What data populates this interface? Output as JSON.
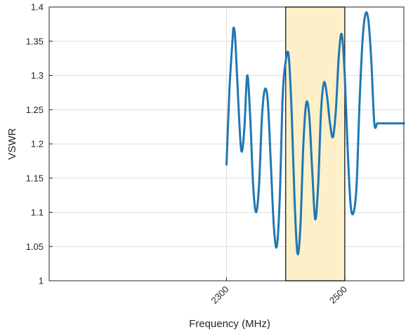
{
  "chart_data": {
    "type": "line",
    "title": "",
    "xlabel": "Frequency (MHz)",
    "ylabel": "VSWR",
    "xlim": [
      2000,
      2600
    ],
    "ylim": [
      1,
      1.4
    ],
    "xticks": [
      2300,
      2500
    ],
    "xtick_labels": [
      "2300",
      "2500"
    ],
    "yticks": [
      1,
      1.05,
      1.1,
      1.15,
      1.2,
      1.25,
      1.3,
      1.35,
      1.4
    ],
    "ytick_labels": [
      "1",
      "1.05",
      "1.1",
      "1.15",
      "1.2",
      "1.25",
      "1.3",
      "1.35",
      "1.4"
    ],
    "grid": true,
    "line_color": "#1f77b4",
    "highlight": {
      "x_range": [
        2400,
        2500
      ],
      "fill_color": "#fdf0c8",
      "edge_color": "#333333"
    },
    "series": [
      {
        "x": [
          2300,
          2305,
          2310,
          2312,
          2315,
          2320,
          2325,
          2330,
          2335,
          2340,
          2345,
          2350,
          2355,
          2360,
          2365,
          2370,
          2375,
          2380,
          2385,
          2390,
          2395,
          2400,
          2405,
          2410,
          2415,
          2420,
          2425,
          2430,
          2435,
          2440,
          2445,
          2450,
          2455,
          2460,
          2465,
          2470,
          2475,
          2480,
          2485,
          2490,
          2495,
          2500,
          2505,
          2510,
          2515,
          2520,
          2525,
          2530,
          2535,
          2540,
          2545,
          2550,
          2555,
          2560,
          2565,
          2570,
          2575,
          2580,
          2585,
          2590,
          2595,
          2600
        ],
        "y": [
          1.17,
          1.28,
          1.35,
          1.37,
          1.35,
          1.26,
          1.19,
          1.22,
          1.3,
          1.24,
          1.14,
          1.1,
          1.14,
          1.24,
          1.28,
          1.26,
          1.17,
          1.08,
          1.05,
          1.12,
          1.27,
          1.32,
          1.33,
          1.25,
          1.12,
          1.04,
          1.08,
          1.2,
          1.26,
          1.24,
          1.16,
          1.09,
          1.14,
          1.25,
          1.29,
          1.27,
          1.23,
          1.21,
          1.25,
          1.33,
          1.36,
          1.3,
          1.19,
          1.11,
          1.1,
          1.14,
          1.26,
          1.35,
          1.39,
          1.38,
          1.32,
          1.23,
          1.23,
          1.23,
          1.23,
          1.23,
          1.23,
          1.23,
          1.23,
          1.23,
          1.23,
          1.23
        ]
      }
    ]
  }
}
